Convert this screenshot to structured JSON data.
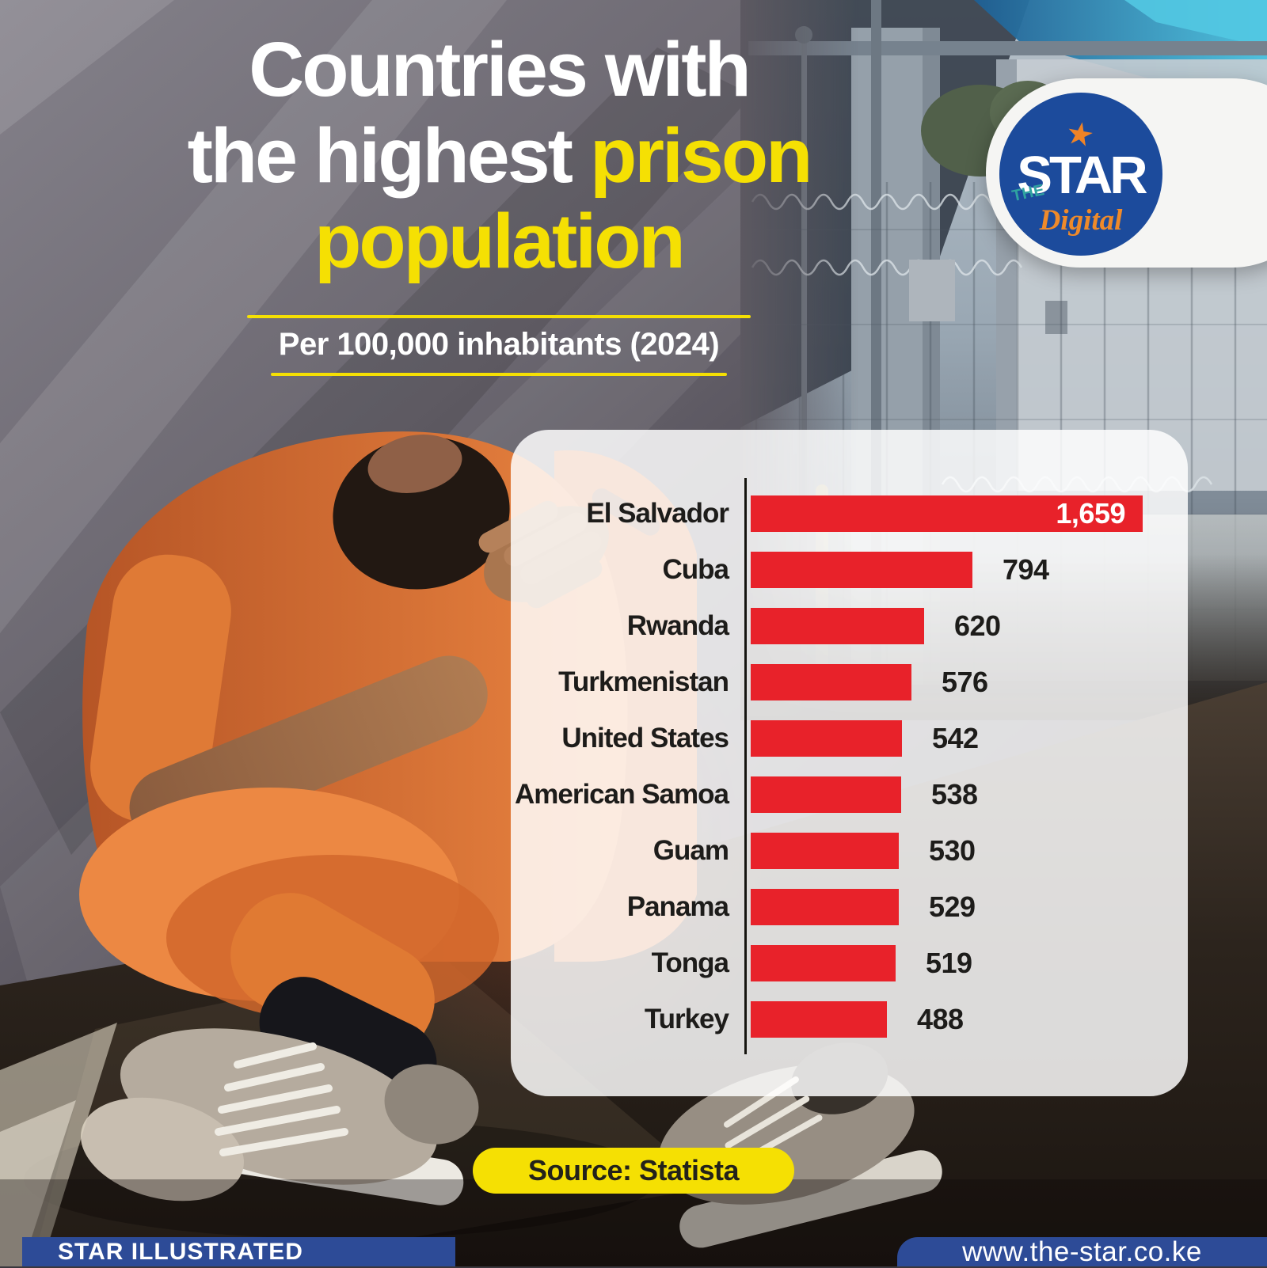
{
  "title": {
    "line1": "Countries with",
    "line2_white": "the highest",
    "line2_yellow": "prison",
    "line3": "population"
  },
  "subtitle": "Per 100,000 inhabitants (2024)",
  "logo": {
    "the": "THE",
    "star": "STAR",
    "digital": "Digital",
    "star_icon": "★"
  },
  "source_badge": "Source: Statista",
  "footer": {
    "left": "STAR ILLUSTRATED",
    "right": "www.the-star.co.ke"
  },
  "colors": {
    "accent_yellow": "#F5E003",
    "bar_red": "#E8222A",
    "footer_blue": "#2D4B97",
    "logo_blue": "#1C4B9C",
    "logo_teal": "#2FA3A0",
    "logo_orange": "#EF8A2A",
    "jumpsuit_orange": "#E07A36"
  },
  "chart_data": {
    "type": "bar",
    "orientation": "horizontal",
    "title": "Countries with the highest prison population",
    "subtitle": "Per 100,000 inhabitants (2024)",
    "categories": [
      "El Salvador",
      "Cuba",
      "Rwanda",
      "Turkmenistan",
      "United States",
      "American Samoa",
      "Guam",
      "Panama",
      "Tonga",
      "Turkey"
    ],
    "values": [
      1659,
      794,
      620,
      576,
      542,
      538,
      530,
      529,
      519,
      488
    ],
    "value_labels": [
      "1,659",
      "794",
      "620",
      "576",
      "542",
      "538",
      "530",
      "529",
      "519",
      "488"
    ],
    "bar_color": "#E8222A",
    "label_color": "#1d1c1a",
    "axis": "single vertical baseline at left of bars",
    "grid": false,
    "legend": false,
    "note": "El Salvador bar visually clipped to card width",
    "source": "Source: Statista"
  }
}
